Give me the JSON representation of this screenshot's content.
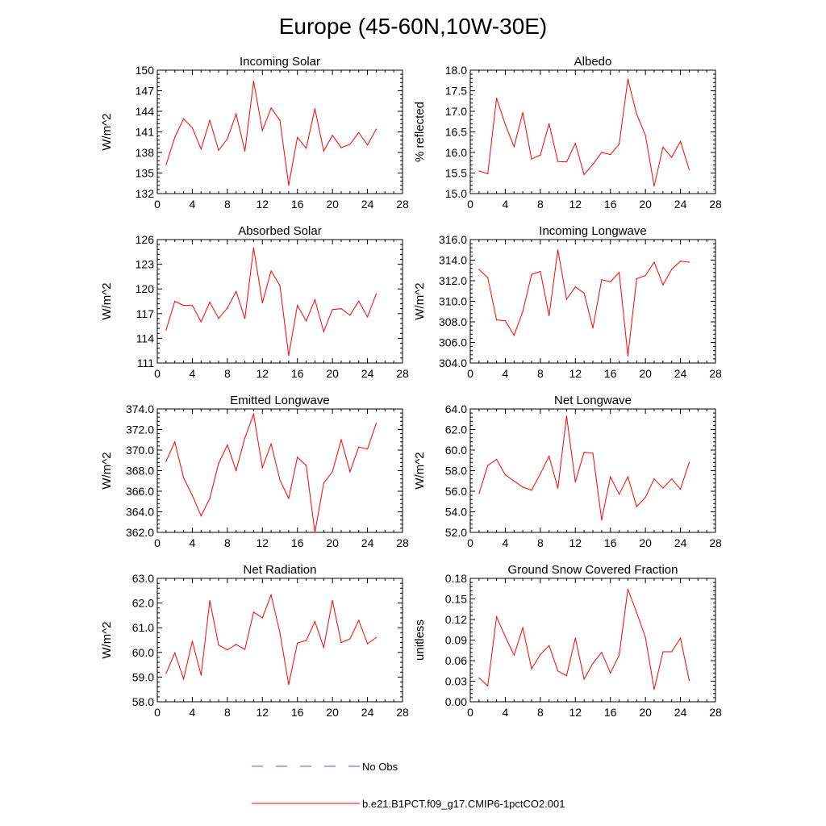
{
  "figure": {
    "title": "Europe (45-60N,10W-30E)"
  },
  "legend": {
    "entries": [
      {
        "label": "No Obs",
        "color": "#5a5ad6",
        "style": "dashed"
      },
      {
        "label": "b.e21.B1PCT.f09_g17.CMIP6-1pctCO2.001",
        "color": "#ff0000",
        "style": "solid"
      }
    ]
  },
  "chart_data": [
    {
      "type": "line",
      "title": "Incoming Solar",
      "ylabel": "W/m^2",
      "xlim": [
        0,
        28
      ],
      "ylim": [
        132,
        150
      ],
      "xticks": [
        "0",
        "4",
        "8",
        "12",
        "16",
        "20",
        "24",
        "28"
      ],
      "yticks": [
        "132",
        "135",
        "138",
        "141",
        "144",
        "147",
        "150"
      ],
      "series": [
        {
          "name": "b.e21.B1PCT.f09_g17.CMIP6-1pctCO2.001",
          "color": "#ff0000",
          "x": [
            1,
            2,
            3,
            4,
            5,
            6,
            7,
            8,
            9,
            10,
            11,
            12,
            13,
            14,
            15,
            16,
            17,
            18,
            19,
            20,
            21,
            22,
            23,
            24,
            25
          ],
          "y": [
            136.2,
            140.2,
            142.9,
            141.6,
            138.5,
            142.7,
            138.3,
            140.0,
            143.6,
            138.2,
            148.4,
            141.2,
            144.5,
            142.7,
            133.2,
            140.2,
            138.6,
            144.4,
            138.2,
            140.5,
            138.7,
            139.2,
            140.9,
            139.1,
            141.4
          ]
        }
      ]
    },
    {
      "type": "line",
      "title": "Albedo",
      "ylabel": "% reflected",
      "xlim": [
        0,
        28
      ],
      "ylim": [
        15.0,
        18.0
      ],
      "xticks": [
        "0",
        "4",
        "8",
        "12",
        "16",
        "20",
        "24",
        "28"
      ],
      "yticks": [
        "15.0",
        "15.5",
        "16.0",
        "16.5",
        "17.0",
        "17.5",
        "18.0"
      ],
      "series": [
        {
          "name": "b.e21.B1PCT.f09_g17.CMIP6-1pctCO2.001",
          "color": "#ff0000",
          "x": [
            1,
            2,
            3,
            4,
            5,
            6,
            7,
            8,
            9,
            10,
            11,
            12,
            13,
            14,
            15,
            16,
            17,
            18,
            19,
            20,
            21,
            22,
            23,
            24,
            25
          ],
          "y": [
            15.55,
            15.48,
            17.32,
            16.68,
            16.14,
            16.97,
            15.84,
            15.94,
            16.7,
            15.78,
            15.77,
            16.22,
            15.46,
            15.71,
            16.0,
            15.95,
            16.2,
            17.78,
            16.93,
            16.42,
            15.18,
            16.13,
            15.88,
            16.27,
            15.58
          ]
        }
      ]
    },
    {
      "type": "line",
      "title": "Absorbed Solar",
      "ylabel": "W/m^2",
      "xlim": [
        0,
        28
      ],
      "ylim": [
        111,
        126
      ],
      "xticks": [
        "0",
        "4",
        "8",
        "12",
        "16",
        "20",
        "24",
        "28"
      ],
      "yticks": [
        "111",
        "114",
        "117",
        "120",
        "123",
        "126"
      ],
      "series": [
        {
          "name": "b.e21.B1PCT.f09_g17.CMIP6-1pctCO2.001",
          "color": "#ff0000",
          "x": [
            1,
            2,
            3,
            4,
            5,
            6,
            7,
            8,
            9,
            10,
            11,
            12,
            13,
            14,
            15,
            16,
            17,
            18,
            19,
            20,
            21,
            22,
            23,
            24,
            25
          ],
          "y": [
            115.0,
            118.5,
            118.0,
            118.0,
            116.0,
            118.4,
            116.4,
            117.7,
            119.7,
            116.4,
            125.0,
            118.3,
            122.2,
            120.4,
            111.9,
            118.0,
            116.1,
            118.7,
            114.8,
            117.5,
            117.6,
            116.8,
            118.5,
            116.6,
            119.4
          ]
        }
      ]
    },
    {
      "type": "line",
      "title": "Incoming Longwave",
      "ylabel": "W/m^2",
      "xlim": [
        0,
        28
      ],
      "ylim": [
        304.0,
        316.0
      ],
      "xticks": [
        "0",
        "4",
        "8",
        "12",
        "16",
        "20",
        "24",
        "28"
      ],
      "yticks": [
        "304.0",
        "306.0",
        "308.0",
        "310.0",
        "312.0",
        "314.0",
        "316.0"
      ],
      "series": [
        {
          "name": "b.e21.B1PCT.f09_g17.CMIP6-1pctCO2.001",
          "color": "#ff0000",
          "x": [
            1,
            2,
            3,
            4,
            5,
            6,
            7,
            8,
            9,
            10,
            11,
            12,
            13,
            14,
            15,
            16,
            17,
            18,
            19,
            20,
            21,
            22,
            23,
            24,
            25
          ],
          "y": [
            313.1,
            312.3,
            308.2,
            308.1,
            306.7,
            309.0,
            312.6,
            312.9,
            308.6,
            315.0,
            310.2,
            311.4,
            310.8,
            307.4,
            312.1,
            311.9,
            312.8,
            304.7,
            312.2,
            312.5,
            313.8,
            311.6,
            313.1,
            313.9,
            313.8
          ]
        }
      ]
    },
    {
      "type": "line",
      "title": "Emitted Longwave",
      "ylabel": "W/m^2",
      "xlim": [
        0,
        28
      ],
      "ylim": [
        362.0,
        374.0
      ],
      "xticks": [
        "0",
        "4",
        "8",
        "12",
        "16",
        "20",
        "24",
        "28"
      ],
      "yticks": [
        "362.0",
        "364.0",
        "366.0",
        "368.0",
        "370.0",
        "372.0",
        "374.0"
      ],
      "series": [
        {
          "name": "b.e21.B1PCT.f09_g17.CMIP6-1pctCO2.001",
          "color": "#ff0000",
          "x": [
            1,
            2,
            3,
            4,
            5,
            6,
            7,
            8,
            9,
            10,
            11,
            12,
            13,
            14,
            15,
            16,
            17,
            18,
            19,
            20,
            21,
            22,
            23,
            24,
            25
          ],
          "y": [
            368.9,
            370.8,
            367.3,
            365.6,
            363.6,
            365.3,
            368.7,
            370.5,
            368.0,
            371.2,
            373.5,
            368.3,
            370.6,
            367.1,
            365.3,
            369.3,
            368.5,
            362.0,
            366.8,
            367.9,
            371.0,
            367.9,
            370.3,
            370.1,
            372.6
          ]
        }
      ]
    },
    {
      "type": "line",
      "title": "Net Longwave",
      "ylabel": "W/m^2",
      "xlim": [
        0,
        28
      ],
      "ylim": [
        52.0,
        64.0
      ],
      "xticks": [
        "0",
        "4",
        "8",
        "12",
        "16",
        "20",
        "24",
        "28"
      ],
      "yticks": [
        "52.0",
        "54.0",
        "56.0",
        "58.0",
        "60.0",
        "62.0",
        "64.0"
      ],
      "series": [
        {
          "name": "b.e21.B1PCT.f09_g17.CMIP6-1pctCO2.001",
          "color": "#ff0000",
          "x": [
            1,
            2,
            3,
            4,
            5,
            6,
            7,
            8,
            9,
            10,
            11,
            12,
            13,
            14,
            15,
            16,
            17,
            18,
            19,
            20,
            21,
            22,
            23,
            24,
            25
          ],
          "y": [
            55.8,
            58.5,
            59.1,
            57.6,
            57.0,
            56.4,
            56.1,
            57.7,
            59.4,
            56.3,
            63.3,
            56.9,
            59.8,
            59.7,
            53.2,
            57.4,
            55.7,
            57.4,
            54.5,
            55.4,
            57.2,
            56.3,
            57.2,
            56.2,
            58.8
          ]
        }
      ]
    },
    {
      "type": "line",
      "title": "Net Radiation",
      "ylabel": "W/m^2",
      "xlim": [
        0,
        28
      ],
      "ylim": [
        58.0,
        63.0
      ],
      "xticks": [
        "0",
        "4",
        "8",
        "12",
        "16",
        "20",
        "24",
        "28"
      ],
      "yticks": [
        "58.0",
        "59.0",
        "60.0",
        "61.0",
        "62.0",
        "63.0"
      ],
      "series": [
        {
          "name": "b.e21.B1PCT.f09_g17.CMIP6-1pctCO2.001",
          "color": "#ff0000",
          "x": [
            1,
            2,
            3,
            4,
            5,
            6,
            7,
            8,
            9,
            10,
            11,
            12,
            13,
            14,
            15,
            16,
            17,
            18,
            19,
            20,
            21,
            22,
            23,
            24,
            25
          ],
          "y": [
            59.15,
            59.98,
            58.92,
            60.45,
            59.08,
            62.1,
            60.3,
            60.1,
            60.32,
            60.12,
            61.63,
            61.4,
            62.33,
            60.8,
            58.7,
            60.38,
            60.48,
            61.25,
            60.2,
            62.1,
            60.4,
            60.55,
            61.3,
            60.35,
            60.6
          ]
        }
      ]
    },
    {
      "type": "line",
      "title": "Ground Snow Covered Fraction",
      "ylabel": "unitless",
      "xlim": [
        0,
        28
      ],
      "ylim": [
        0.0,
        0.18
      ],
      "xticks": [
        "0",
        "4",
        "8",
        "12",
        "16",
        "20",
        "24",
        "28"
      ],
      "yticks": [
        "0.00",
        "0.03",
        "0.06",
        "0.09",
        "0.12",
        "0.15",
        "0.18"
      ],
      "series": [
        {
          "name": "b.e21.B1PCT.f09_g17.CMIP6-1pctCO2.001",
          "color": "#ff0000",
          "x": [
            1,
            2,
            3,
            4,
            5,
            6,
            7,
            8,
            9,
            10,
            11,
            12,
            13,
            14,
            15,
            16,
            17,
            18,
            19,
            20,
            21,
            22,
            23,
            24,
            25
          ],
          "y": [
            0.035,
            0.023,
            0.124,
            0.095,
            0.068,
            0.108,
            0.048,
            0.069,
            0.082,
            0.045,
            0.038,
            0.093,
            0.033,
            0.056,
            0.072,
            0.042,
            0.068,
            0.164,
            0.13,
            0.094,
            0.018,
            0.073,
            0.073,
            0.093,
            0.031
          ]
        }
      ]
    }
  ]
}
